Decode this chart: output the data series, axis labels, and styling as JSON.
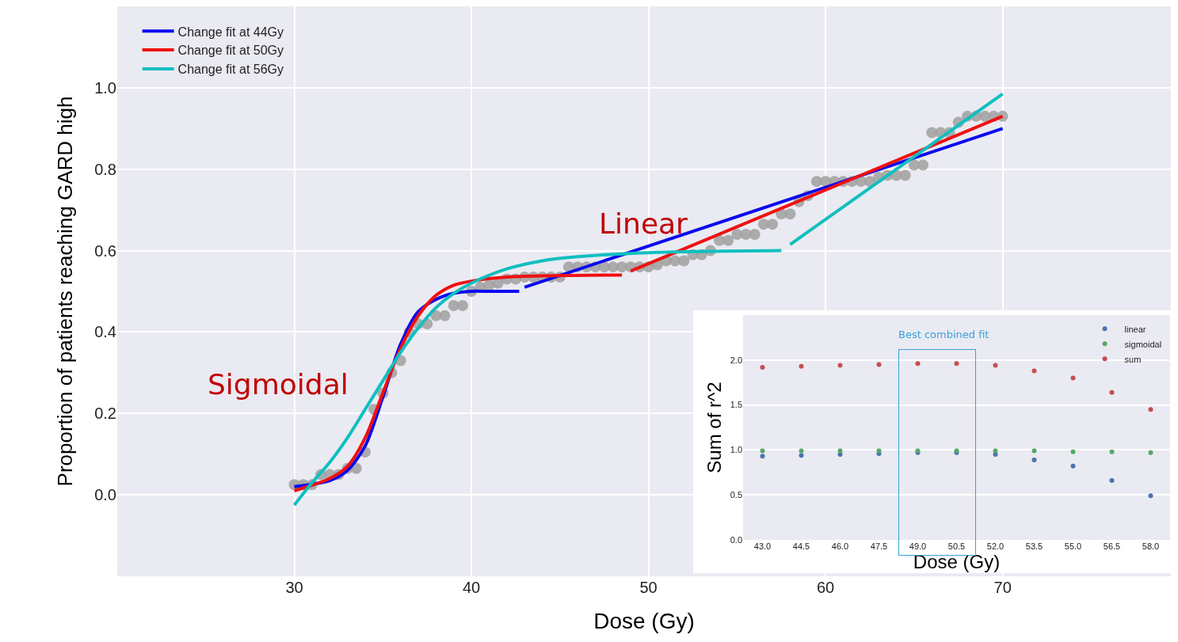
{
  "chart_data": [
    {
      "type": "line",
      "xlabel": "Dose (Gy)",
      "ylabel": "Proportion of patients reaching GARD high",
      "xlim": [
        20,
        79.5
      ],
      "ylim": [
        -0.2,
        1.2
      ],
      "xticks": [
        30,
        40,
        50,
        60,
        70
      ],
      "yticks": [
        {
          "value": 0,
          "label": "0.0"
        },
        {
          "value": 0.2,
          "label": "0.2"
        },
        {
          "value": 0.4,
          "label": "0.4"
        },
        {
          "value": 0.6,
          "label": "0.6"
        },
        {
          "value": 0.8,
          "label": "0.8"
        },
        {
          "value": 1,
          "label": "1.0"
        }
      ],
      "grid": true,
      "legend": "top left",
      "line_style": "solid",
      "annotations": [
        "Sigmoidal",
        "Linear"
      ],
      "series": [
        {
          "type": "scatter",
          "marker": "circle",
          "color": "#a0a0a0",
          "x": [
            30,
            30.5,
            31,
            31.5,
            32,
            32.5,
            33,
            33.5,
            34,
            34.5,
            35,
            35.5,
            36,
            36.5,
            37,
            37.5,
            38,
            38.5,
            39,
            39.5,
            40,
            40.5,
            41,
            41.5,
            42,
            42.5,
            43,
            43.5,
            44,
            44.5,
            45,
            45.5,
            46,
            46.5,
            47,
            47.5,
            48,
            48.5,
            49,
            49.5,
            50,
            50.5,
            51,
            51.5,
            52,
            52.5,
            53,
            53.5,
            54,
            54.5,
            55,
            55.5,
            56,
            56.5,
            57,
            57.5,
            58,
            58.5,
            59,
            59.5,
            60,
            60.5,
            61,
            61.5,
            62,
            62.5,
            63,
            63.5,
            64,
            64.5,
            65,
            65.5,
            66,
            66.5,
            67,
            67.5,
            68,
            68.5,
            69,
            69.5,
            70
          ],
          "values": [
            0.025,
            0.025,
            0.025,
            0.05,
            0.05,
            0.05,
            0.065,
            0.065,
            0.105,
            0.21,
            0.25,
            0.3,
            0.33,
            0.4,
            0.42,
            0.42,
            0.44,
            0.44,
            0.465,
            0.465,
            0.5,
            0.51,
            0.515,
            0.52,
            0.53,
            0.53,
            0.535,
            0.535,
            0.535,
            0.535,
            0.535,
            0.56,
            0.56,
            0.56,
            0.56,
            0.56,
            0.56,
            0.56,
            0.56,
            0.56,
            0.56,
            0.565,
            0.575,
            0.575,
            0.575,
            0.59,
            0.59,
            0.6,
            0.625,
            0.625,
            0.64,
            0.64,
            0.64,
            0.665,
            0.665,
            0.69,
            0.69,
            0.72,
            0.735,
            0.77,
            0.77,
            0.77,
            0.77,
            0.77,
            0.77,
            0.77,
            0.78,
            0.785,
            0.785,
            0.785,
            0.81,
            0.81,
            0.89,
            0.89,
            0.89,
            0.915,
            0.93,
            0.93,
            0.93,
            0.93,
            0.93
          ]
        },
        {
          "name": "Change fit at 44Gy",
          "color": "#0a0af0",
          "x": [
            30,
            32,
            33,
            34,
            35,
            36,
            37,
            38,
            39,
            40,
            41,
            42.7,
            42.85,
            43,
            70
          ],
          "values": [
            0.02,
            0.035,
            0.06,
            0.12,
            0.24,
            0.37,
            0.45,
            0.48,
            0.495,
            0.5,
            0.5,
            0.5,
            null,
            0.51,
            0.9
          ]
        },
        {
          "name": "Change fit at 50Gy",
          "color": "#f01010",
          "x": [
            30,
            32,
            33,
            34,
            35,
            36,
            37,
            38,
            39,
            40,
            42,
            48.5,
            48.75,
            49,
            70
          ],
          "values": [
            0.01,
            0.04,
            0.07,
            0.14,
            0.25,
            0.36,
            0.44,
            0.49,
            0.515,
            0.525,
            0.535,
            0.54,
            null,
            0.55,
            0.93
          ]
        },
        {
          "name": "Change fit at 56Gy",
          "color": "#10bfbf",
          "x": [
            30,
            31,
            32,
            33,
            34,
            35,
            36,
            37,
            38,
            39,
            40,
            42,
            44,
            46,
            50,
            57.5,
            57.75,
            58,
            70
          ],
          "values": [
            -0.025,
            0.03,
            0.08,
            0.14,
            0.21,
            0.28,
            0.35,
            0.41,
            0.46,
            0.495,
            0.52,
            0.555,
            0.575,
            0.585,
            0.595,
            0.6,
            null,
            0.615,
            0.985
          ]
        }
      ]
    },
    {
      "type": "scatter",
      "xlabel": "Dose (Gy)",
      "ylabel": "Sum of r^2",
      "categories": [
        "43.0",
        "44.5",
        "46.0",
        "47.5",
        "49.0",
        "50.5",
        "52.0",
        "53.5",
        "55.0",
        "56.5",
        "58.0"
      ],
      "ylim": [
        0,
        2.5
      ],
      "yticks": [
        {
          "value": 0,
          "label": "0.0"
        },
        {
          "value": 0.5,
          "label": "0.5"
        },
        {
          "value": 1,
          "label": "1.0"
        },
        {
          "value": 1.5,
          "label": "1.5"
        },
        {
          "value": 2,
          "label": "2.0"
        }
      ],
      "grid": "y",
      "legend": "top right",
      "marker": "circle",
      "annotations": [
        "Best combined fit"
      ],
      "series": [
        {
          "name": "linear",
          "color": "#4c72b0",
          "values": [
            0.93,
            0.94,
            0.95,
            0.96,
            0.97,
            0.97,
            0.95,
            0.89,
            0.82,
            0.66,
            0.49
          ]
        },
        {
          "name": "sigmoidal",
          "color": "#55a868",
          "values": [
            0.99,
            0.99,
            0.99,
            0.99,
            0.99,
            0.99,
            0.99,
            0.99,
            0.98,
            0.98,
            0.97
          ]
        },
        {
          "name": "sum",
          "color": "#c44e52",
          "values": [
            1.92,
            1.93,
            1.94,
            1.95,
            1.96,
            1.96,
            1.94,
            1.88,
            1.8,
            1.64,
            1.45
          ]
        }
      ]
    }
  ]
}
